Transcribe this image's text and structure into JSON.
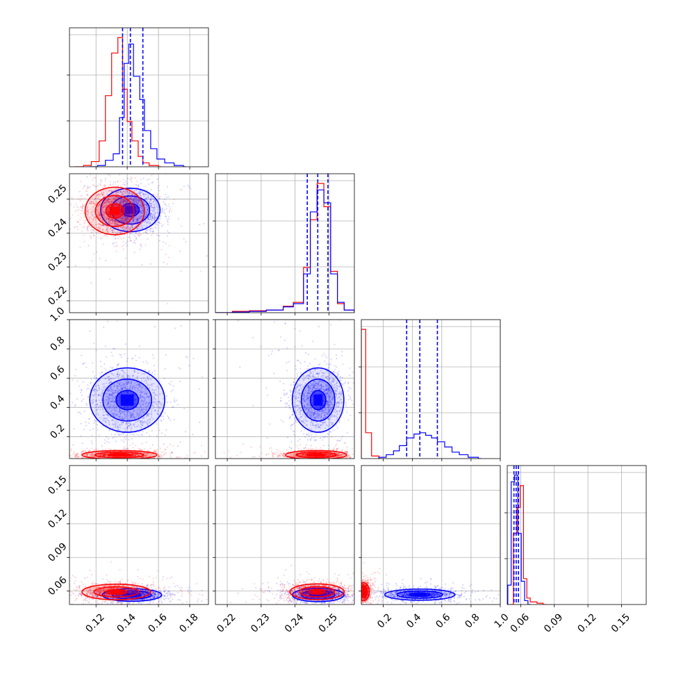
{
  "chart_data": {
    "type": "corner",
    "title": "",
    "grid": true,
    "series": [
      {
        "color": "#ff0000"
      },
      {
        "color": "#0000ff"
      }
    ],
    "parameters": [
      {
        "range": [
          0.103,
          0.192
        ],
        "ticks": [
          0.12,
          0.14,
          0.16,
          0.18
        ],
        "tick_labels": [
          "0.12",
          "0.14",
          "0.16",
          "0.18"
        ]
      },
      {
        "range": [
          0.2165,
          0.2575
        ],
        "ticks": [
          0.22,
          0.23,
          0.24,
          0.25
        ],
        "tick_labels": [
          "0.22",
          "0.23",
          "0.24",
          "0.25"
        ]
      },
      {
        "range": [
          0.05,
          1.0
        ],
        "ticks": [
          0.2,
          0.4,
          0.6,
          0.8,
          1.0
        ],
        "tick_labels": [
          "0.2",
          "0.4",
          "0.6",
          "0.8",
          "1.0"
        ]
      },
      {
        "range": [
          0.048,
          0.172
        ],
        "ticks": [
          0.06,
          0.09,
          0.12,
          0.15
        ],
        "tick_labels": [
          "0.06",
          "0.09",
          "0.12",
          "0.15"
        ]
      }
    ],
    "histograms": [
      {
        "param": 0,
        "quantiles": [
          0.137,
          0.142,
          0.15
        ],
        "red": [
          [
            0.106,
            0.0
          ],
          [
            0.112,
            0.01
          ],
          [
            0.117,
            0.04
          ],
          [
            0.122,
            0.2
          ],
          [
            0.126,
            0.55
          ],
          [
            0.13,
            0.88
          ],
          [
            0.134,
            1.0
          ],
          [
            0.137,
            0.6
          ],
          [
            0.14,
            0.35
          ],
          [
            0.143,
            0.2
          ],
          [
            0.147,
            0.08
          ],
          [
            0.15,
            0.03
          ],
          [
            0.154,
            0.01
          ],
          [
            0.16,
            0.0
          ]
        ],
        "blue": [
          [
            0.116,
            0.0
          ],
          [
            0.121,
            0.01
          ],
          [
            0.126,
            0.05
          ],
          [
            0.131,
            0.1
          ],
          [
            0.135,
            0.38
          ],
          [
            0.138,
            0.8
          ],
          [
            0.141,
            0.95
          ],
          [
            0.144,
            0.7
          ],
          [
            0.148,
            0.52
          ],
          [
            0.151,
            0.28
          ],
          [
            0.155,
            0.14
          ],
          [
            0.159,
            0.06
          ],
          [
            0.164,
            0.03
          ],
          [
            0.17,
            0.01
          ],
          [
            0.176,
            0.0
          ]
        ]
      },
      {
        "param": 1,
        "quantiles": [
          0.2436,
          0.2467,
          0.2497
        ],
        "red": [
          [
            0.2165,
            0.0
          ],
          [
            0.2215,
            0.01
          ],
          [
            0.2265,
            0.015
          ],
          [
            0.2315,
            0.02
          ],
          [
            0.2365,
            0.05
          ],
          [
            0.2395,
            0.08
          ],
          [
            0.2425,
            0.35
          ],
          [
            0.2445,
            0.72
          ],
          [
            0.2465,
            1.0
          ],
          [
            0.2485,
            0.82
          ],
          [
            0.2505,
            0.32
          ],
          [
            0.2525,
            0.07
          ],
          [
            0.2545,
            0.02
          ],
          [
            0.2575,
            0.0
          ]
        ],
        "blue": [
          [
            0.2165,
            0.0
          ],
          [
            0.2215,
            0.005
          ],
          [
            0.2265,
            0.01
          ],
          [
            0.2315,
            0.02
          ],
          [
            0.2365,
            0.045
          ],
          [
            0.2395,
            0.07
          ],
          [
            0.2425,
            0.3
          ],
          [
            0.2445,
            0.78
          ],
          [
            0.2465,
            0.95
          ],
          [
            0.2485,
            0.85
          ],
          [
            0.2505,
            0.3
          ],
          [
            0.2525,
            0.08
          ],
          [
            0.2545,
            0.02
          ],
          [
            0.2575,
            0.0
          ]
        ]
      },
      {
        "param": 2,
        "quantiles": [
          0.36,
          0.45,
          0.57
        ],
        "red": [
          [
            0.05,
            1.0
          ],
          [
            0.08,
            0.2
          ],
          [
            0.12,
            0.02
          ],
          [
            0.17,
            0.0
          ]
        ],
        "blue": [
          [
            0.17,
            0.01
          ],
          [
            0.22,
            0.03
          ],
          [
            0.27,
            0.06
          ],
          [
            0.31,
            0.1
          ],
          [
            0.36,
            0.16
          ],
          [
            0.41,
            0.19
          ],
          [
            0.45,
            0.2
          ],
          [
            0.49,
            0.18
          ],
          [
            0.53,
            0.16
          ],
          [
            0.57,
            0.13
          ],
          [
            0.62,
            0.09
          ],
          [
            0.67,
            0.05
          ],
          [
            0.72,
            0.03
          ],
          [
            0.78,
            0.01
          ],
          [
            0.85,
            0.0
          ]
        ]
      },
      {
        "param": 3,
        "quantiles": [
          0.054,
          0.056,
          0.058
        ],
        "red": [
          [
            0.0505,
            0.0
          ],
          [
            0.0535,
            0.55
          ],
          [
            0.0565,
            0.75
          ],
          [
            0.0595,
            0.92
          ],
          [
            0.0625,
            0.2
          ],
          [
            0.0655,
            0.05
          ],
          [
            0.0685,
            0.02
          ],
          [
            0.0745,
            0.01
          ],
          [
            0.08,
            0.0
          ]
        ],
        "blue": [
          [
            0.0485,
            0.15
          ],
          [
            0.0515,
            0.95
          ],
          [
            0.0545,
            1.0
          ],
          [
            0.0575,
            0.55
          ],
          [
            0.0605,
            0.18
          ],
          [
            0.0635,
            0.03
          ],
          [
            0.0665,
            0.0
          ]
        ]
      }
    ],
    "contour_panels": [
      {
        "x": 0,
        "y": 1,
        "red_center": [
          0.132,
          0.2465
        ],
        "blue_center": [
          0.142,
          0.2468
        ],
        "red_sigma": [
          0.0095,
          0.0035
        ],
        "blue_sigma": [
          0.0095,
          0.0032
        ]
      },
      {
        "x": 0,
        "y": 2,
        "red_center": [
          0.135,
          0.075
        ],
        "blue_center": [
          0.14,
          0.45
        ],
        "red_sigma": [
          0.012,
          0.015
        ],
        "blue_sigma": [
          0.012,
          0.11
        ]
      },
      {
        "x": 1,
        "y": 2,
        "red_center": [
          0.2462,
          0.075
        ],
        "blue_center": [
          0.2468,
          0.45
        ],
        "red_sigma": [
          0.0045,
          0.015
        ],
        "blue_sigma": [
          0.0038,
          0.11
        ]
      },
      {
        "x": 0,
        "y": 3,
        "red_center": [
          0.133,
          0.0592
        ],
        "blue_center": [
          0.143,
          0.0565
        ],
        "red_sigma": [
          0.011,
          0.0035
        ],
        "blue_sigma": [
          0.0095,
          0.0028
        ]
      },
      {
        "x": 1,
        "y": 3,
        "red_center": [
          0.2465,
          0.0594
        ],
        "blue_center": [
          0.2468,
          0.0565
        ],
        "red_sigma": [
          0.004,
          0.0035
        ],
        "blue_sigma": [
          0.0038,
          0.003
        ]
      },
      {
        "x": 2,
        "y": 3,
        "red_center": [
          0.065,
          0.0595
        ],
        "blue_center": [
          0.45,
          0.0568
        ],
        "red_sigma": [
          0.02,
          0.004
        ],
        "blue_sigma": [
          0.12,
          0.0025
        ]
      }
    ]
  }
}
